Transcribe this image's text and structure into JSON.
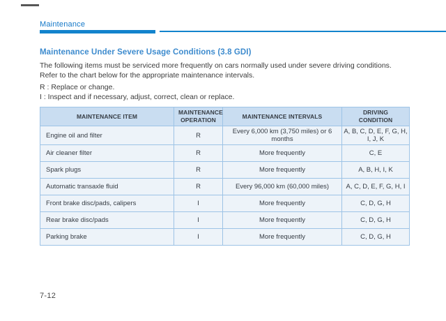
{
  "page": {
    "running_header": "Maintenance",
    "page_number": "7-12"
  },
  "colors": {
    "accent_blue": "#1283cd",
    "header_text_blue": "#1478c8",
    "title_blue": "#3d8bce",
    "table_header_bg": "#c9ddf1",
    "table_row_bg": "#edf3f9",
    "table_border": "#9dc3e6"
  },
  "section": {
    "title": "Maintenance Under Severe Usage Conditions (3.8 GDI)",
    "intro": "The following items must be serviced more frequently on cars normally used under severe driving conditions. Refer to the chart below for the appropriate maintenance intervals.",
    "legend": [
      "R : Replace or change.",
      "I  : Inspect and if necessary, adjust, correct, clean or replace."
    ]
  },
  "table": {
    "headers": [
      "MAINTENANCE ITEM",
      "MAINTENANCE OPERATION",
      "MAINTENANCE INTERVALS",
      "DRIVING CONDITION"
    ],
    "rows": [
      {
        "item": "Engine oil and filter",
        "operation": "R",
        "interval": "Every 6,000 km (3,750 miles) or 6 months",
        "condition": "A, B, C, D, E, F, G, H, I, J, K"
      },
      {
        "item": "Air cleaner filter",
        "operation": "R",
        "interval": "More frequently",
        "condition": "C, E"
      },
      {
        "item": "Spark plugs",
        "operation": "R",
        "interval": "More frequently",
        "condition": "A, B, H, I, K"
      },
      {
        "item": "Automatic transaxle fluid",
        "operation": "R",
        "interval": "Every 96,000 km (60,000 miles)",
        "condition": "A, C, D, E, F, G, H, I"
      },
      {
        "item": "Front brake disc/pads, calipers",
        "operation": "I",
        "interval": "More frequently",
        "condition": "C, D, G, H"
      },
      {
        "item": "Rear brake disc/pads",
        "operation": "I",
        "interval": "More frequently",
        "condition": "C, D, G, H"
      },
      {
        "item": "Parking brake",
        "operation": "I",
        "interval": "More frequently",
        "condition": "C, D, G, H"
      }
    ]
  }
}
